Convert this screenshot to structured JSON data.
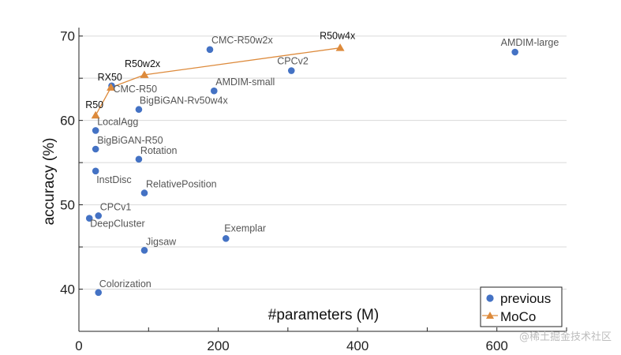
{
  "chart_data": {
    "type": "scatter",
    "title": "",
    "xlabel": "#parameters (M)",
    "ylabel": "accuracy (%)",
    "xlim": [
      0,
      700
    ],
    "ylim": [
      35,
      71
    ],
    "xticks": [
      0,
      200,
      400,
      600
    ],
    "yticks": [
      40,
      50,
      60,
      70
    ],
    "legend_position": "bottom-right",
    "series": [
      {
        "name": "previous",
        "marker": "circle",
        "color": "#4472c4",
        "points": [
          {
            "label": "AMDIM-large",
            "x": 626,
            "y": 68.1
          },
          {
            "label": "CMC-R50w2x",
            "x": 188,
            "y": 68.4
          },
          {
            "label": "CPCv2",
            "x": 305,
            "y": 65.9
          },
          {
            "label": "AMDIM-small",
            "x": 194,
            "y": 63.5
          },
          {
            "label": "CMC-R50",
            "x": 47,
            "y": 64.1
          },
          {
            "label": "BigBiGAN-Rv50w4x",
            "x": 86,
            "y": 61.3
          },
          {
            "label": "LocalAgg",
            "x": 24,
            "y": 58.8
          },
          {
            "label": "BigBiGAN-R50",
            "x": 24,
            "y": 56.6
          },
          {
            "label": "Rotation",
            "x": 86,
            "y": 55.4
          },
          {
            "label": "InstDisc",
            "x": 24,
            "y": 54.0
          },
          {
            "label": "RelativePosition",
            "x": 94,
            "y": 51.4
          },
          {
            "label": "CPCv1",
            "x": 28,
            "y": 48.7
          },
          {
            "label": "DeepCluster",
            "x": 15,
            "y": 48.4
          },
          {
            "label": "Exemplar",
            "x": 211,
            "y": 46.0
          },
          {
            "label": "Jigsaw",
            "x": 94,
            "y": 44.6
          },
          {
            "label": "Colorization",
            "x": 28,
            "y": 39.6
          }
        ]
      },
      {
        "name": "MoCo",
        "marker": "triangle",
        "color": "#dd8a3b",
        "connected": true,
        "points": [
          {
            "label": "R50",
            "x": 24,
            "y": 60.6
          },
          {
            "label": "RX50",
            "x": 46,
            "y": 63.9
          },
          {
            "label": "R50w2x",
            "x": 94,
            "y": 65.4
          },
          {
            "label": "R50w4x",
            "x": 375,
            "y": 68.6
          }
        ]
      }
    ]
  },
  "watermark": "@稀土掘金技术社区"
}
